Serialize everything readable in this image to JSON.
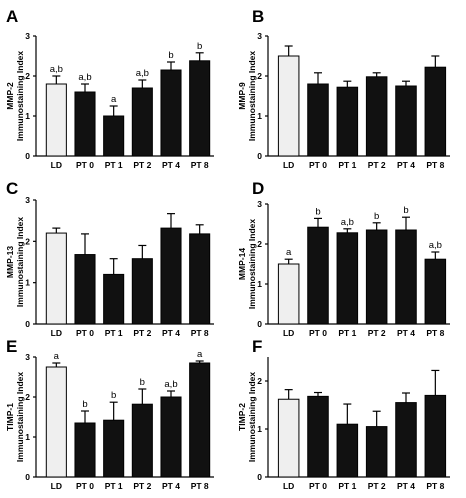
{
  "chart_data": [
    {
      "type": "bar",
      "panel_label": "A",
      "title": "",
      "ylabel": [
        "MMP-2",
        "Immunostaining Index"
      ],
      "xlabel": "",
      "categories": [
        "LD",
        "PT 0",
        "PT 1",
        "PT 2",
        "PT 4",
        "PT 8"
      ],
      "values": [
        1.8,
        1.6,
        1.0,
        1.7,
        2.15,
        2.38
      ],
      "errors": [
        0.2,
        0.2,
        0.25,
        0.2,
        0.2,
        0.2
      ],
      "significance": [
        "a,b",
        "a,b",
        "a",
        "a,b",
        "b",
        "b"
      ],
      "ylim": [
        0,
        3
      ],
      "yticks": [
        "0",
        "1",
        "2",
        "3"
      ],
      "bar_colors": [
        "#efefef",
        "#111111",
        "#111111",
        "#111111",
        "#111111",
        "#111111"
      ]
    },
    {
      "type": "bar",
      "panel_label": "B",
      "title": "",
      "ylabel": [
        "MMP-9",
        "Immunostaining Index"
      ],
      "xlabel": "",
      "categories": [
        "LD",
        "PT 0",
        "PT 1",
        "PT 2",
        "PT 4",
        "PT 8"
      ],
      "values": [
        2.5,
        1.8,
        1.72,
        1.98,
        1.75,
        2.22
      ],
      "errors": [
        0.25,
        0.28,
        0.15,
        0.1,
        0.12,
        0.28
      ],
      "significance": [
        "",
        "",
        "",
        "",
        "",
        ""
      ],
      "ylim": [
        0,
        3
      ],
      "yticks": [
        "0",
        "1",
        "2",
        "3"
      ],
      "bar_colors": [
        "#efefef",
        "#111111",
        "#111111",
        "#111111",
        "#111111",
        "#111111"
      ]
    },
    {
      "type": "bar",
      "panel_label": "C",
      "title": "",
      "ylabel": [
        "MMP-13",
        "Immunostaining Index"
      ],
      "xlabel": "",
      "categories": [
        "LD",
        "PT 0",
        "PT 1",
        "PT 2",
        "PT 4",
        "PT 8"
      ],
      "values": [
        2.2,
        1.68,
        1.2,
        1.58,
        2.32,
        2.18
      ],
      "errors": [
        0.12,
        0.5,
        0.38,
        0.32,
        0.35,
        0.22
      ],
      "significance": [
        "",
        "",
        "",
        "",
        "",
        ""
      ],
      "ylim": [
        0,
        3
      ],
      "yticks": [
        "0",
        "1",
        "2",
        "3"
      ],
      "bar_colors": [
        "#efefef",
        "#111111",
        "#111111",
        "#111111",
        "#111111",
        "#111111"
      ]
    },
    {
      "type": "bar",
      "panel_label": "D",
      "title": "",
      "ylabel": [
        "MMP-14",
        "Immunostaining Index"
      ],
      "xlabel": "",
      "categories": [
        "LD",
        "PT 0",
        "PT 1",
        "PT 2",
        "PT 4",
        "PT 8"
      ],
      "values": [
        1.5,
        2.42,
        2.28,
        2.35,
        2.35,
        1.62
      ],
      "errors": [
        0.12,
        0.22,
        0.1,
        0.18,
        0.32,
        0.18
      ],
      "significance": [
        "a",
        "b",
        "a,b",
        "b",
        "b",
        "a,b"
      ],
      "ylim": [
        0,
        3
      ],
      "yticks": [
        "0",
        "1",
        "2",
        "3"
      ],
      "bar_colors": [
        "#efefef",
        "#111111",
        "#111111",
        "#111111",
        "#111111",
        "#111111"
      ]
    },
    {
      "type": "bar",
      "panel_label": "E",
      "title": "",
      "ylabel": [
        "TIMP-1",
        "Immunostaining Index"
      ],
      "xlabel": "",
      "categories": [
        "LD",
        "PT 0",
        "PT 1",
        "PT 2",
        "PT 4",
        "PT 8"
      ],
      "values": [
        2.75,
        1.35,
        1.42,
        1.82,
        2.0,
        2.85
      ],
      "errors": [
        0.1,
        0.3,
        0.45,
        0.38,
        0.15,
        0.05
      ],
      "significance": [
        "a",
        "b",
        "b",
        "b",
        "a,b",
        "a"
      ],
      "ylim": [
        0,
        3
      ],
      "yticks": [
        "0",
        "1",
        "2",
        "3"
      ],
      "bar_colors": [
        "#efefef",
        "#111111",
        "#111111",
        "#111111",
        "#111111",
        "#111111"
      ]
    },
    {
      "type": "bar",
      "panel_label": "F",
      "title": "",
      "ylabel": [
        "TIMP-2",
        "Immunostaining Index"
      ],
      "xlabel": "",
      "categories": [
        "LD",
        "PT 0",
        "PT 1",
        "PT 2",
        "PT 4",
        "PT 8"
      ],
      "values": [
        1.62,
        1.68,
        1.1,
        1.05,
        1.55,
        1.7
      ],
      "errors": [
        0.2,
        0.08,
        0.42,
        0.32,
        0.2,
        0.52
      ],
      "significance": [
        "",
        "",
        "",
        "",
        "",
        ""
      ],
      "ylim": [
        0,
        2.5
      ],
      "yticks": [
        "0",
        "1",
        "2"
      ],
      "bar_colors": [
        "#efefef",
        "#111111",
        "#111111",
        "#111111",
        "#111111",
        "#111111"
      ]
    }
  ]
}
